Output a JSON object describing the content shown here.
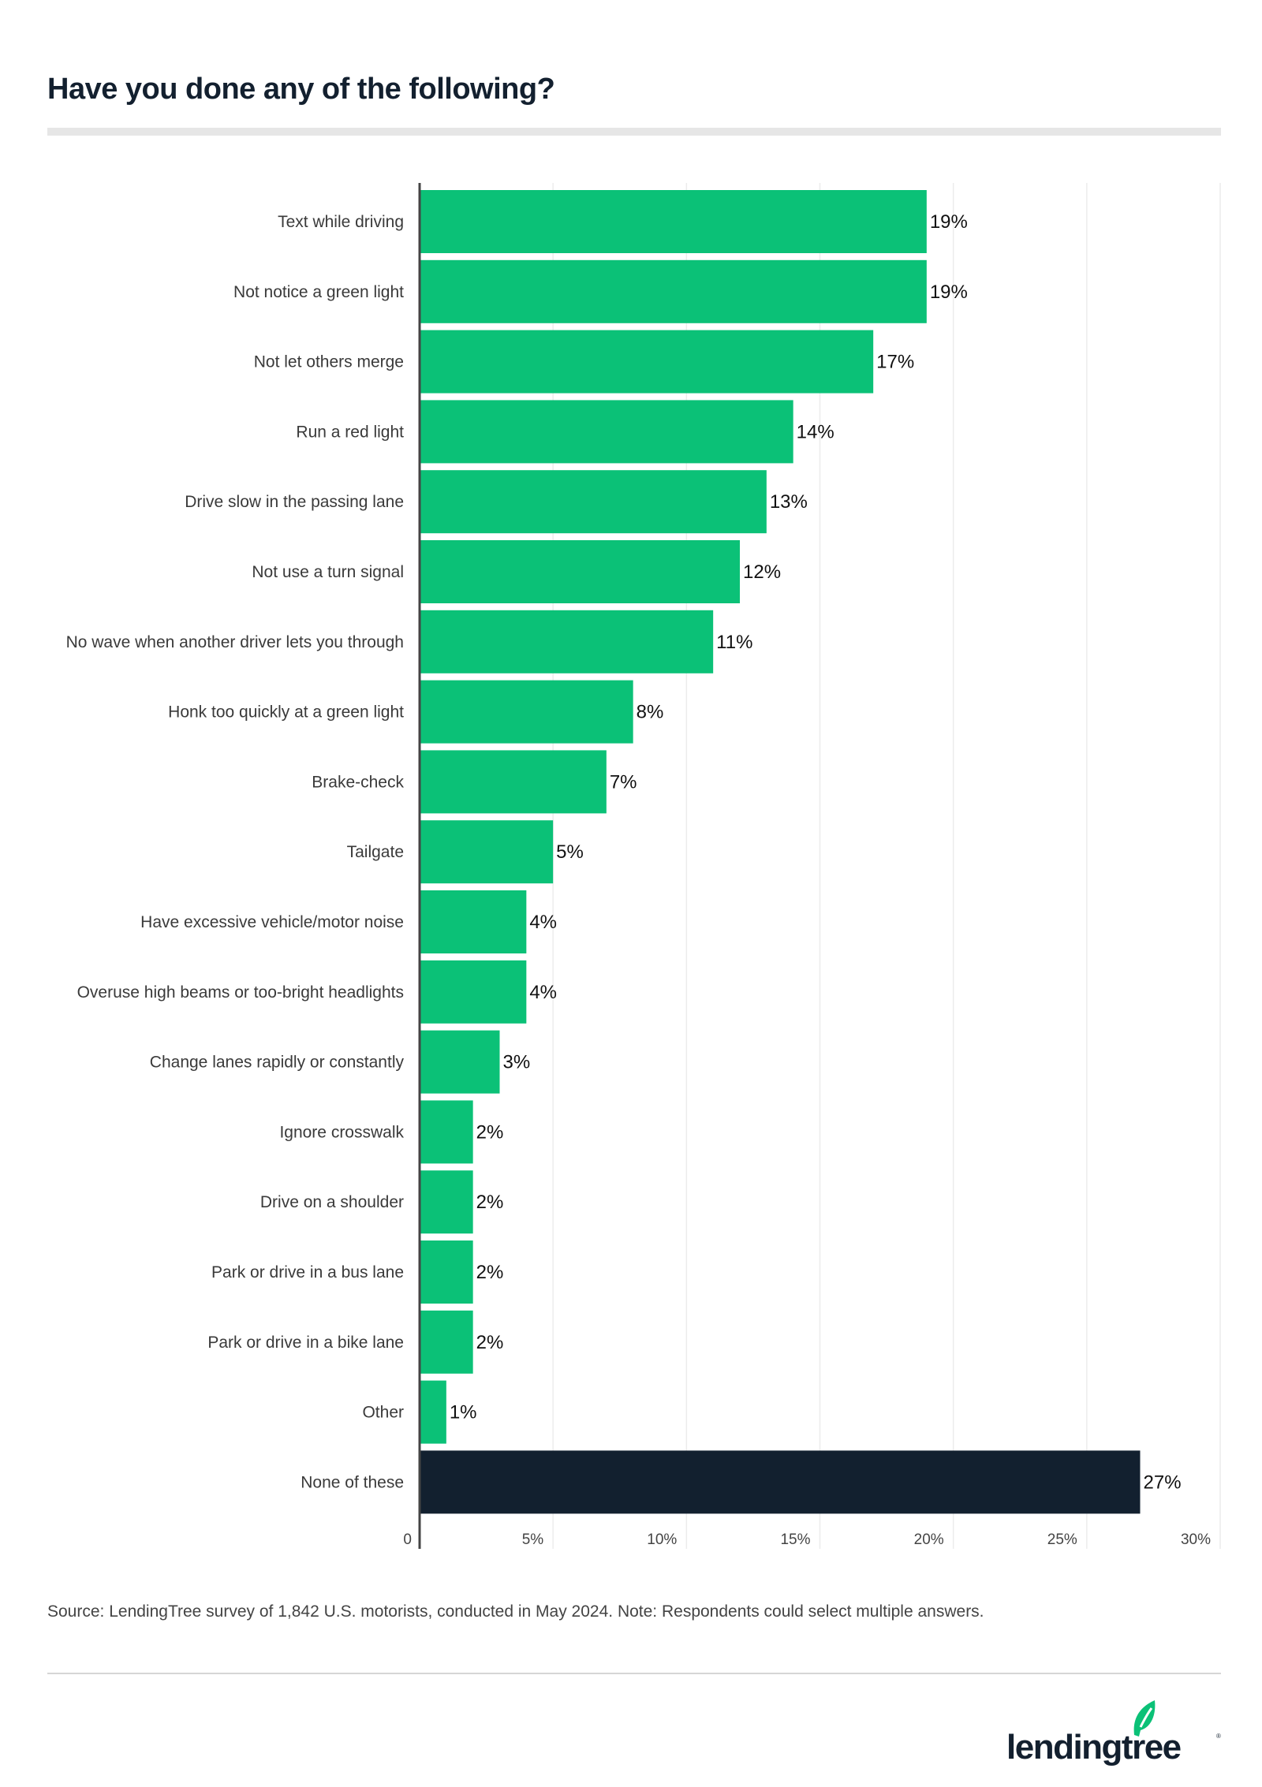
{
  "title": "Have you done any of the following?",
  "source": "Source: LendingTree survey of 1,842 U.S. motorists, conducted in May 2024. Note: Respondents could select multiple answers.",
  "logo_text": "lendingtree",
  "colors": {
    "bar": "#0bc177",
    "highlight": "#12202f",
    "title": "#13202f"
  },
  "chart_data": {
    "type": "bar",
    "orientation": "horizontal",
    "categories": [
      "Text while driving",
      "Not notice a green light",
      "Not let others merge",
      "Run a red light",
      "Drive slow in the passing lane",
      "Not use a turn signal",
      "No wave when another driver lets you through",
      "Honk too quickly at a green light",
      "Brake-check",
      "Tailgate",
      "Have excessive vehicle/motor noise",
      "Overuse high beams or too-bright headlights",
      "Change lanes rapidly or constantly",
      "Ignore crosswalk",
      "Drive on a shoulder",
      "Park or drive in a bus lane",
      "Park or drive in a bike lane",
      "Other",
      "None of these"
    ],
    "values": [
      19,
      19,
      17,
      14,
      13,
      12,
      11,
      8,
      7,
      5,
      4,
      4,
      3,
      2,
      2,
      2,
      2,
      1,
      27
    ],
    "data_labels": [
      "19%",
      "19%",
      "17%",
      "14%",
      "13%",
      "12%",
      "11%",
      "8%",
      "7%",
      "5%",
      "4%",
      "4%",
      "3%",
      "2%",
      "2%",
      "2%",
      "2%",
      "1%",
      "27%"
    ],
    "highlighted": [
      "None of these"
    ],
    "xlim": [
      0,
      30
    ],
    "xticks": [
      0,
      5,
      10,
      15,
      20,
      25,
      30
    ],
    "xtick_labels": [
      "0",
      "5%",
      "10%",
      "15%",
      "20%",
      "25%",
      "30%"
    ],
    "grid": "vertical",
    "xlabel": "",
    "ylabel": ""
  }
}
